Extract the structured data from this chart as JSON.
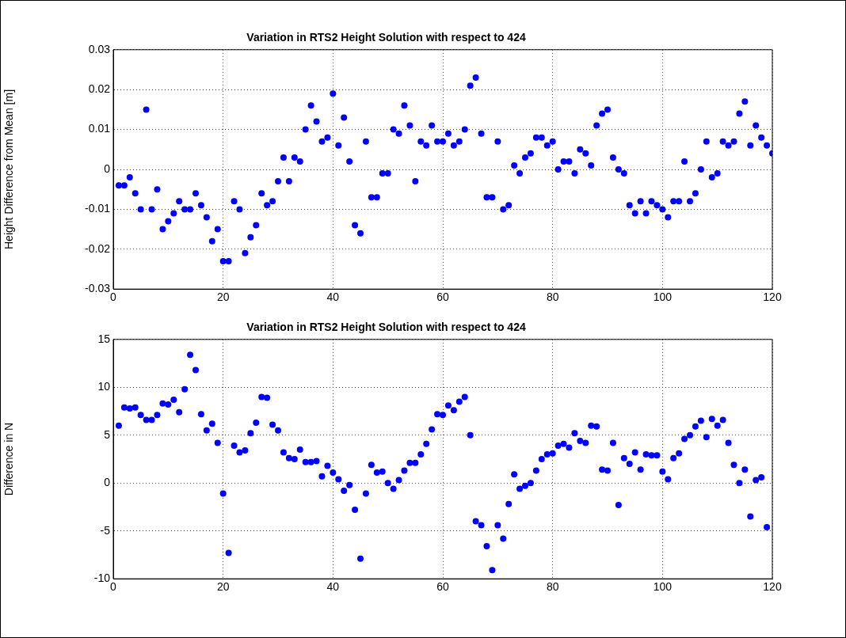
{
  "chart_data": [
    {
      "type": "scatter",
      "title": "Variation in RTS2 Height Solution with respect to 424",
      "ylabel": "Height Difference from Mean [m]",
      "marker": "circle",
      "grid": true,
      "legend": false,
      "xlim": [
        0,
        120
      ],
      "xticks": [
        0,
        20,
        40,
        60,
        80,
        100,
        120
      ],
      "ylim": [
        -0.03,
        0.03
      ],
      "yticks": [
        -0.03,
        -0.02,
        -0.01,
        0,
        0.01,
        0.02,
        0.03
      ],
      "series": [
        {
          "color": "#0000ff",
          "x": [
            1,
            2,
            3,
            4,
            5,
            6,
            7,
            8,
            9,
            10,
            11,
            12,
            13,
            14,
            15,
            16,
            17,
            18,
            19,
            20,
            21,
            22,
            23,
            24,
            25,
            26,
            27,
            28,
            29,
            30,
            31,
            32,
            33,
            34,
            35,
            36,
            37,
            38,
            39,
            40,
            41,
            42,
            43,
            44,
            45,
            46,
            47,
            48,
            49,
            50,
            51,
            52,
            53,
            54,
            55,
            56,
            57,
            58,
            59,
            60,
            61,
            62,
            63,
            64,
            65,
            66,
            67,
            68,
            69,
            70,
            71,
            72,
            73,
            74,
            75,
            76,
            77,
            78,
            79,
            80,
            81,
            82,
            83,
            84,
            85,
            86,
            87,
            88,
            89,
            90,
            91,
            92,
            93,
            94,
            95,
            96,
            97,
            98,
            99,
            100,
            101,
            102,
            103,
            104,
            105,
            106,
            107,
            108,
            109,
            110,
            111,
            112,
            113,
            114,
            115,
            116,
            117,
            118,
            119,
            120
          ],
          "values": [
            -0.004,
            -0.004,
            -0.002,
            -0.006,
            -0.01,
            0.015,
            -0.01,
            -0.005,
            -0.015,
            -0.013,
            -0.011,
            -0.008,
            -0.01,
            -0.01,
            -0.006,
            -0.009,
            -0.012,
            -0.018,
            -0.015,
            -0.023,
            -0.023,
            -0.008,
            -0.01,
            -0.021,
            -0.017,
            -0.014,
            -0.006,
            -0.009,
            -0.008,
            -0.003,
            0.003,
            -0.003,
            0.003,
            0.002,
            0.01,
            0.016,
            0.012,
            0.007,
            0.008,
            0.019,
            0.006,
            0.013,
            0.002,
            -0.014,
            -0.016,
            0.007,
            -0.007,
            -0.007,
            -0.001,
            -0.001,
            0.01,
            0.009,
            0.016,
            0.011,
            -0.003,
            0.007,
            0.006,
            0.011,
            0.007,
            0.007,
            0.009,
            0.006,
            0.007,
            0.01,
            0.021,
            0.023,
            0.009,
            -0.007,
            -0.007,
            0.007,
            -0.01,
            -0.009,
            0.001,
            -0.001,
            0.003,
            0.004,
            0.008,
            0.008,
            0.006,
            0.007,
            0,
            0.002,
            0.002,
            -0.001,
            0.005,
            0.004,
            0.001,
            0.011,
            0.014,
            0.015,
            0.003,
            0,
            -0.001,
            -0.009,
            -0.011,
            -0.008,
            -0.011,
            -0.008,
            -0.009,
            -0.01,
            -0.012,
            -0.008,
            -0.008,
            0.002,
            -0.008,
            -0.006,
            0,
            0.007,
            -0.002,
            -0.001,
            0.007,
            0.006,
            0.007,
            0.014,
            0.017,
            0.006,
            0.011,
            0.008,
            0.006,
            0.004
          ]
        }
      ]
    },
    {
      "type": "scatter",
      "title": "Variation in RTS2 Height Solution with respect to 424",
      "ylabel": "Difference in N",
      "marker": "circle",
      "grid": true,
      "legend": false,
      "xlim": [
        0,
        120
      ],
      "xticks": [
        0,
        20,
        40,
        60,
        80,
        100,
        120
      ],
      "ylim": [
        -10,
        15
      ],
      "yticks": [
        -10,
        -5,
        0,
        5,
        10,
        15
      ],
      "series": [
        {
          "color": "#0000ff",
          "x": [
            1,
            2,
            3,
            4,
            5,
            6,
            7,
            8,
            9,
            10,
            11,
            12,
            13,
            14,
            15,
            16,
            17,
            18,
            19,
            20,
            21,
            22,
            23,
            24,
            25,
            26,
            27,
            28,
            29,
            30,
            31,
            32,
            33,
            34,
            35,
            36,
            37,
            38,
            39,
            40,
            41,
            42,
            43,
            44,
            45,
            46,
            47,
            48,
            49,
            50,
            51,
            52,
            53,
            54,
            55,
            56,
            57,
            58,
            59,
            60,
            61,
            62,
            63,
            64,
            65,
            66,
            67,
            68,
            69,
            70,
            71,
            72,
            73,
            74,
            75,
            76,
            77,
            78,
            79,
            80,
            81,
            82,
            83,
            84,
            85,
            86,
            87,
            88,
            89,
            90,
            91,
            92,
            93,
            94,
            95,
            96,
            97,
            98,
            99,
            100,
            101,
            102,
            103,
            104,
            105,
            106,
            107,
            108,
            109,
            110,
            111,
            112,
            113,
            114,
            115,
            116,
            117,
            118,
            119
          ],
          "values": [
            6.0,
            7.9,
            7.8,
            7.9,
            7.1,
            6.6,
            6.6,
            7.1,
            8.3,
            8.2,
            8.7,
            7.4,
            9.8,
            13.4,
            11.8,
            7.2,
            5.5,
            6.2,
            4.2,
            -1.1,
            -7.3,
            3.9,
            3.2,
            3.4,
            5.2,
            6.3,
            9.0,
            8.9,
            6.1,
            5.5,
            3.2,
            2.6,
            2.5,
            3.5,
            2.2,
            2.2,
            2.3,
            0.7,
            1.8,
            1.1,
            0.4,
            -0.8,
            -0.2,
            -2.8,
            -7.9,
            -1.1,
            1.9,
            1.1,
            1.2,
            0.0,
            -0.6,
            0.3,
            1.3,
            2.1,
            2.1,
            3.0,
            4.1,
            5.6,
            7.2,
            7.1,
            8.1,
            7.6,
            8.5,
            9.0,
            5.0,
            -4.0,
            -4.4,
            -6.6,
            -9.1,
            -4.4,
            -5.8,
            -2.2,
            0.9,
            -0.6,
            -0.3,
            0.0,
            1.3,
            2.5,
            3.0,
            3.1,
            3.9,
            4.1,
            3.7,
            5.2,
            4.4,
            4.2,
            6.0,
            5.9,
            1.4,
            1.3,
            4.2,
            -2.3,
            2.6,
            2.0,
            3.2,
            1.4,
            3.0,
            2.9,
            2.9,
            1.2,
            0.4,
            2.6,
            3.1,
            4.6,
            5.0,
            5.9,
            6.5,
            4.8,
            6.7,
            6.0,
            6.6,
            4.2,
            1.9,
            0.0,
            1.4,
            -3.5,
            0.3,
            0.6,
            -4.6
          ]
        }
      ]
    }
  ]
}
